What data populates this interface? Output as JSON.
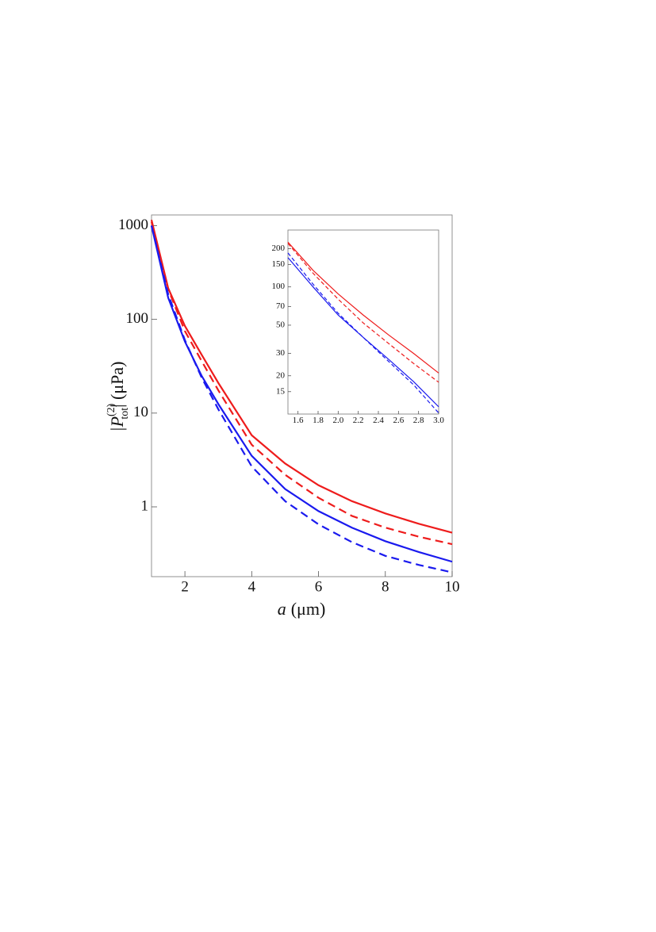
{
  "chart_data": [
    {
      "type": "line",
      "xlabel": {
        "var": "a",
        "unit": "(μm)"
      },
      "ylabel": {
        "base": "|P",
        "sup": "(2)",
        "sub": "tot",
        "unit": "| (μPa)"
      },
      "y_log": true,
      "x": [
        1,
        1.5,
        2,
        2.5,
        3,
        4,
        5,
        6,
        7,
        8,
        9,
        10
      ],
      "series": [
        {
          "color": "#ee1c1c",
          "dashed": false,
          "values": [
            1150,
            215,
            85,
            42,
            21,
            5.8,
            2.9,
            1.7,
            1.15,
            0.85,
            0.66,
            0.53
          ]
        },
        {
          "color": "#ee1c1c",
          "dashed": true,
          "values": [
            1100,
            210,
            75,
            36,
            17.5,
            4.6,
            2.2,
            1.25,
            0.8,
            0.6,
            0.48,
            0.4
          ]
        },
        {
          "color": "#1a1aee",
          "dashed": false,
          "values": [
            1000,
            170,
            58,
            25,
            12.5,
            3.5,
            1.55,
            0.9,
            0.6,
            0.43,
            0.33,
            0.26
          ]
        },
        {
          "color": "#1a1aee",
          "dashed": true,
          "values": [
            1000,
            185,
            60,
            24,
            11,
            2.7,
            1.15,
            0.65,
            0.42,
            0.3,
            0.24,
            0.2
          ]
        }
      ],
      "xlim": [
        1,
        10
      ],
      "ylim": [
        0.18,
        1300
      ],
      "xticks": [
        2,
        4,
        6,
        8,
        10
      ],
      "yticks": [
        1,
        10,
        100,
        1000
      ]
    },
    {
      "type": "line",
      "y_log": true,
      "x": [
        1.5,
        1.75,
        2,
        2.25,
        2.5,
        2.75,
        3
      ],
      "series": [
        {
          "color": "#ee1c1c",
          "dashed": false,
          "values": [
            225,
            135,
            88,
            60,
            42,
            30,
            21
          ]
        },
        {
          "color": "#ee1c1c",
          "dashed": true,
          "values": [
            220,
            128,
            80,
            52,
            36,
            25,
            17.8
          ]
        },
        {
          "color": "#1a1aee",
          "dashed": false,
          "values": [
            170,
            100,
            60,
            40,
            27,
            18,
            11.4
          ]
        },
        {
          "color": "#1a1aee",
          "dashed": true,
          "values": [
            185,
            105,
            62,
            40,
            26,
            17,
            10.2
          ]
        }
      ],
      "xlim": [
        1.5,
        3
      ],
      "ylim": [
        10,
        280
      ],
      "xticks": [
        1.6,
        1.8,
        {
          "value": 2,
          "label": "2.0"
        },
        2.2,
        2.4,
        2.6,
        2.8,
        {
          "value": 3,
          "label": "3.0"
        }
      ],
      "yticks": [
        15,
        20,
        30,
        50,
        70,
        100,
        150,
        200
      ]
    }
  ]
}
